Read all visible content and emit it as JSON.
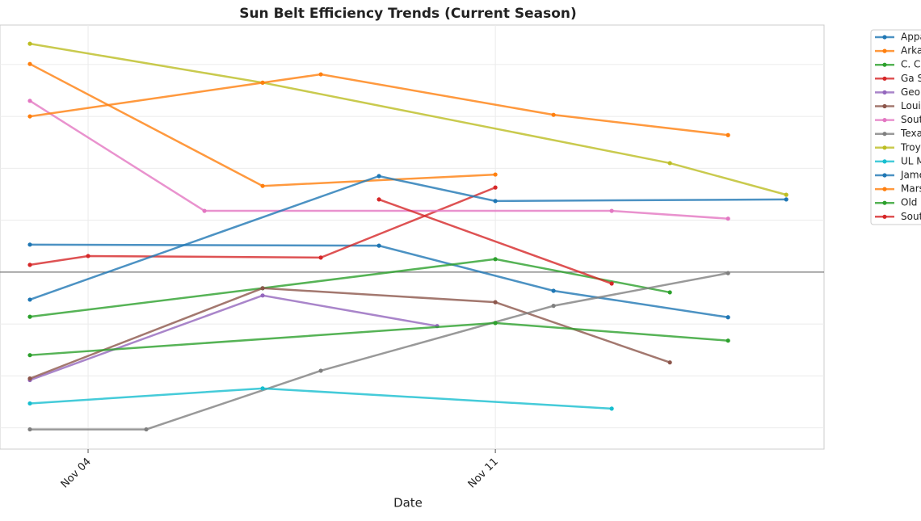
{
  "chart_data": {
    "type": "line",
    "title": "Sun Belt Efficiency Trends (Current Season)",
    "x_label": "Date",
    "xlim": [
      2.486,
      16.65
    ],
    "xticks": [
      {
        "value": 4,
        "label": "Nov 04"
      },
      {
        "value": 11,
        "label": "Nov 11"
      }
    ],
    "ylim": [
      -3.41,
      4.76
    ],
    "yticks": [
      -3,
      -2,
      -1,
      0,
      1,
      2,
      3,
      4
    ],
    "grid": true,
    "zero_line": true,
    "legend": "outside-right",
    "series": [
      {
        "name": "Appa",
        "color": "#1f77b4",
        "x": [
          3,
          9,
          12,
          15
        ],
        "values": [
          0.53,
          0.51,
          -0.36,
          -0.87
        ]
      },
      {
        "name": "Arka",
        "color": "#ff7f0e",
        "x": [
          3,
          7,
          11
        ],
        "values": [
          4.01,
          1.66,
          1.88
        ]
      },
      {
        "name": "C. C",
        "color": "#2ca02c",
        "x": [
          3,
          7,
          11,
          14
        ],
        "values": [
          -0.86,
          -0.31,
          0.25,
          -0.39
        ]
      },
      {
        "name": "Ga S",
        "color": "#d62728",
        "x": [
          3,
          4,
          8,
          11
        ],
        "values": [
          0.14,
          0.31,
          0.28,
          1.63
        ]
      },
      {
        "name": "Geor",
        "color": "#9467bd",
        "x": [
          3,
          7,
          10
        ],
        "values": [
          -2.08,
          -0.45,
          -1.04
        ]
      },
      {
        "name": "Loui",
        "color": "#8c564b",
        "x": [
          3,
          7,
          11,
          14
        ],
        "values": [
          -2.05,
          -0.31,
          -0.58,
          -1.74
        ]
      },
      {
        "name": "Sout",
        "color": "#e377c2",
        "x": [
          3,
          6,
          13,
          15
        ],
        "values": [
          3.3,
          1.18,
          1.18,
          1.03
        ]
      },
      {
        "name": "Texa",
        "color": "#7f7f7f",
        "x": [
          3,
          5,
          8,
          12,
          15
        ],
        "values": [
          -3.03,
          -3.03,
          -1.9,
          -0.65,
          -0.02
        ]
      },
      {
        "name": "Troy",
        "color": "#bcbd22",
        "x": [
          3,
          7,
          14,
          16
        ],
        "values": [
          4.4,
          3.65,
          2.1,
          1.49
        ]
      },
      {
        "name": "UL M",
        "color": "#17becf",
        "x": [
          3,
          7,
          13
        ],
        "values": [
          -2.53,
          -2.24,
          -2.63
        ]
      },
      {
        "name": "Jame",
        "color": "#1f77b4",
        "x": [
          3,
          9,
          11,
          16
        ],
        "values": [
          -0.53,
          1.85,
          1.37,
          1.4
        ]
      },
      {
        "name": "Mars",
        "color": "#ff7f0e",
        "x": [
          3,
          7,
          8,
          12,
          15
        ],
        "values": [
          3.0,
          3.65,
          3.81,
          3.03,
          2.64
        ]
      },
      {
        "name": "Old",
        "color": "#2ca02c",
        "x": [
          3,
          11,
          15
        ],
        "values": [
          -1.6,
          -0.98,
          -1.32
        ]
      },
      {
        "name": "Sout",
        "color": "#d62728",
        "x": [
          9,
          13
        ],
        "values": [
          1.4,
          -0.22
        ]
      }
    ]
  }
}
